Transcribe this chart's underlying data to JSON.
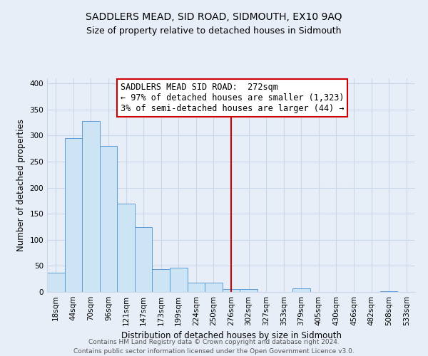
{
  "title": "SADDLERS MEAD, SID ROAD, SIDMOUTH, EX10 9AQ",
  "subtitle": "Size of property relative to detached houses in Sidmouth",
  "xlabel": "Distribution of detached houses by size in Sidmouth",
  "ylabel": "Number of detached properties",
  "bin_labels": [
    "18sqm",
    "44sqm",
    "70sqm",
    "96sqm",
    "121sqm",
    "147sqm",
    "173sqm",
    "199sqm",
    "224sqm",
    "250sqm",
    "276sqm",
    "302sqm",
    "327sqm",
    "353sqm",
    "379sqm",
    "405sqm",
    "430sqm",
    "456sqm",
    "482sqm",
    "508sqm",
    "533sqm"
  ],
  "bar_heights": [
    37,
    295,
    328,
    280,
    170,
    124,
    44,
    46,
    18,
    18,
    5,
    6,
    0,
    0,
    7,
    0,
    0,
    0,
    0,
    2,
    0
  ],
  "bar_color": "#cde4f5",
  "bar_edge_color": "#5b9bd5",
  "vline_x": 10.5,
  "vline_color": "#cc0000",
  "annotation_title": "SADDLERS MEAD SID ROAD:  272sqm",
  "annotation_line1": "← 97% of detached houses are smaller (1,323)",
  "annotation_line2": "3% of semi-detached houses are larger (44) →",
  "annotation_box_color": "white",
  "annotation_box_edge": "#cc0000",
  "ylim": [
    0,
    410
  ],
  "yticks": [
    0,
    50,
    100,
    150,
    200,
    250,
    300,
    350,
    400
  ],
  "grid_color": "#c8d8e8",
  "background_color": "#e8eef8",
  "footer1": "Contains HM Land Registry data © Crown copyright and database right 2024.",
  "footer2": "Contains public sector information licensed under the Open Government Licence v3.0.",
  "title_fontsize": 10,
  "subtitle_fontsize": 9,
  "annotation_fontsize": 8.5,
  "axis_label_fontsize": 8.5,
  "tick_fontsize": 7.5,
  "footer_fontsize": 6.5
}
